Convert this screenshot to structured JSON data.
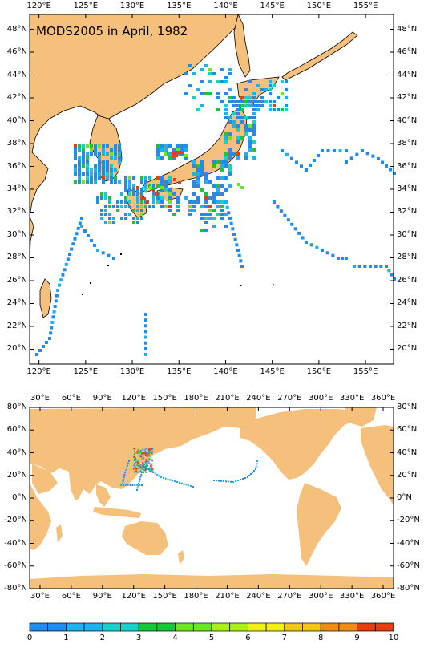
{
  "title": "MODS2005 in April, 1982",
  "top_map": {
    "lon_labels": [
      "120°E",
      "125°E",
      "130°E",
      "135°E",
      "140°E",
      "145°E",
      "150°E",
      "155°E"
    ],
    "lat_labels": [
      "48°N",
      "46°N",
      "44°N",
      "42°N",
      "40°N",
      "38°N",
      "36°N",
      "34°N",
      "32°N",
      "30°N",
      "28°N",
      "26°N",
      "24°N",
      "22°N",
      "20°N"
    ],
    "lon_range": [
      119,
      158
    ],
    "lat_range": [
      18.7,
      49.3
    ]
  },
  "bottom_map": {
    "lon_labels": [
      "30°E",
      "60°E",
      "90°E",
      "120°E",
      "150°E",
      "180°E",
      "210°E",
      "240°E",
      "270°E",
      "300°E",
      "330°E",
      "360°E"
    ],
    "lat_labels": [
      "80°N",
      "60°N",
      "40°N",
      "20°N",
      "0°N",
      "-20°N",
      "-40°N",
      "-60°N",
      "-80°N"
    ],
    "lon_range": [
      20,
      370
    ],
    "lat_range": [
      -80,
      80
    ]
  },
  "colorbar": {
    "ticks": [
      "0",
      "1",
      "2",
      "3",
      "4",
      "5",
      "6",
      "7",
      "8",
      "9",
      "10"
    ],
    "colors": [
      "#1550d8",
      "#1e8cf0",
      "#19b4f0",
      "#14d2c8",
      "#14c83c",
      "#6ee61e",
      "#aaf014",
      "#f0f014",
      "#f0c814",
      "#f08c14",
      "#e83c14"
    ]
  },
  "colors": {
    "land": "#f4c07c",
    "ocean": "#ffffff",
    "coast": "#000000"
  }
}
